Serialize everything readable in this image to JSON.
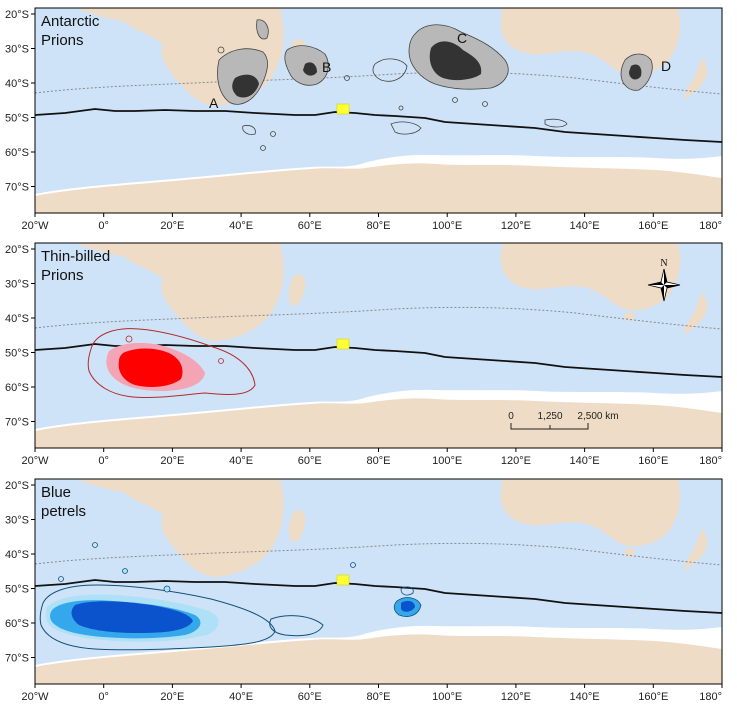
{
  "x_ticks": [
    "20°W",
    "0°",
    "20°E",
    "40°E",
    "60°E",
    "80°E",
    "100°E",
    "120°E",
    "140°E",
    "160°E",
    "180°"
  ],
  "y_ticks": [
    "20°S",
    "30°S",
    "40°S",
    "50°S",
    "60°S",
    "70°S"
  ],
  "panels": [
    {
      "title_lines": [
        "Antarctic",
        "Prions"
      ],
      "colony_labels": [
        "A",
        "B",
        "C",
        "D"
      ]
    },
    {
      "title_lines": [
        "Thin-billed",
        "Prions"
      ]
    },
    {
      "title_lines": [
        "Blue",
        "petrels"
      ]
    }
  ],
  "compass": {
    "north_label": "N"
  },
  "scale_bar": {
    "labels": [
      "0",
      "1,250",
      "2,500 km"
    ]
  },
  "colors": {
    "ocean": "#cfe3f8",
    "land": "#efdcc6",
    "antarctic_core": "#333333",
    "antarctic_mid": "#b8b8b8",
    "thinbilled_core": "#ff0000",
    "thinbilled_mid": "#f4a5b5",
    "thinbilled_outline": "#b32a2a",
    "blue_core": "#0b53cc",
    "blue_mid": "#34a8ea",
    "blue_light": "#aee0f7",
    "colony_marker": "#ffff33"
  }
}
